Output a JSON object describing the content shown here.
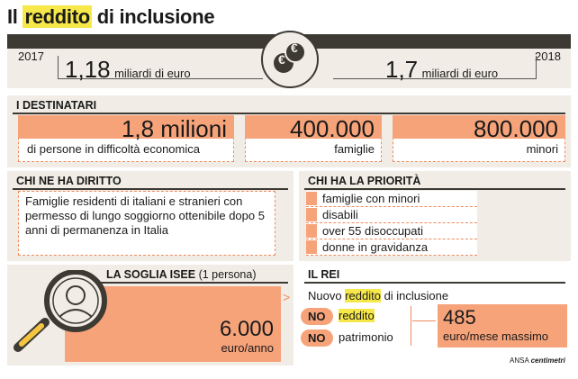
{
  "title": {
    "pre": "Il ",
    "highlight": "reddito",
    "post": " di inclusione"
  },
  "funding": {
    "year_left": "2017",
    "value_left": "1,18",
    "unit_left": "miliardi di euro",
    "year_right": "2018",
    "value_right": "1,7",
    "unit_right": "miliardi di euro",
    "coin_symbol": "€"
  },
  "destinatari": {
    "heading": "I DESTINATARI",
    "items": [
      {
        "value": "1,8 milioni",
        "label": "di persone in difficoltà economica"
      },
      {
        "value": "400.000",
        "label": "famiglie"
      },
      {
        "value": "800.000",
        "label": "minori"
      }
    ]
  },
  "diritto": {
    "heading": "CHI NE HA DIRITTO",
    "text": "Famiglie residenti di italiani e stranieri con permesso di lungo soggiorno ottenibile dopo 5 anni di permanenza in Italia"
  },
  "priorita": {
    "heading": "CHI HA LA PRIORITÀ",
    "items": [
      "famiglie con minori",
      "disabili",
      "over 55 disoccupati",
      "donne in gravidanza"
    ]
  },
  "isee": {
    "heading": "LA SOGLIA ISEE",
    "heading_note": "(1 persona)",
    "value": "6.000",
    "unit": "euro/anno"
  },
  "rei": {
    "heading": "IL REI",
    "line_pre": "Nuovo ",
    "line_hl": "reddito",
    "line_post": " di inclusione",
    "no_label": "NO",
    "no_items": [
      "reddito",
      "patrimonio"
    ],
    "max_value": "485",
    "max_unit": "euro/mese massimo"
  },
  "credit": {
    "source": "ANSA",
    "brand": "centimetri"
  }
}
